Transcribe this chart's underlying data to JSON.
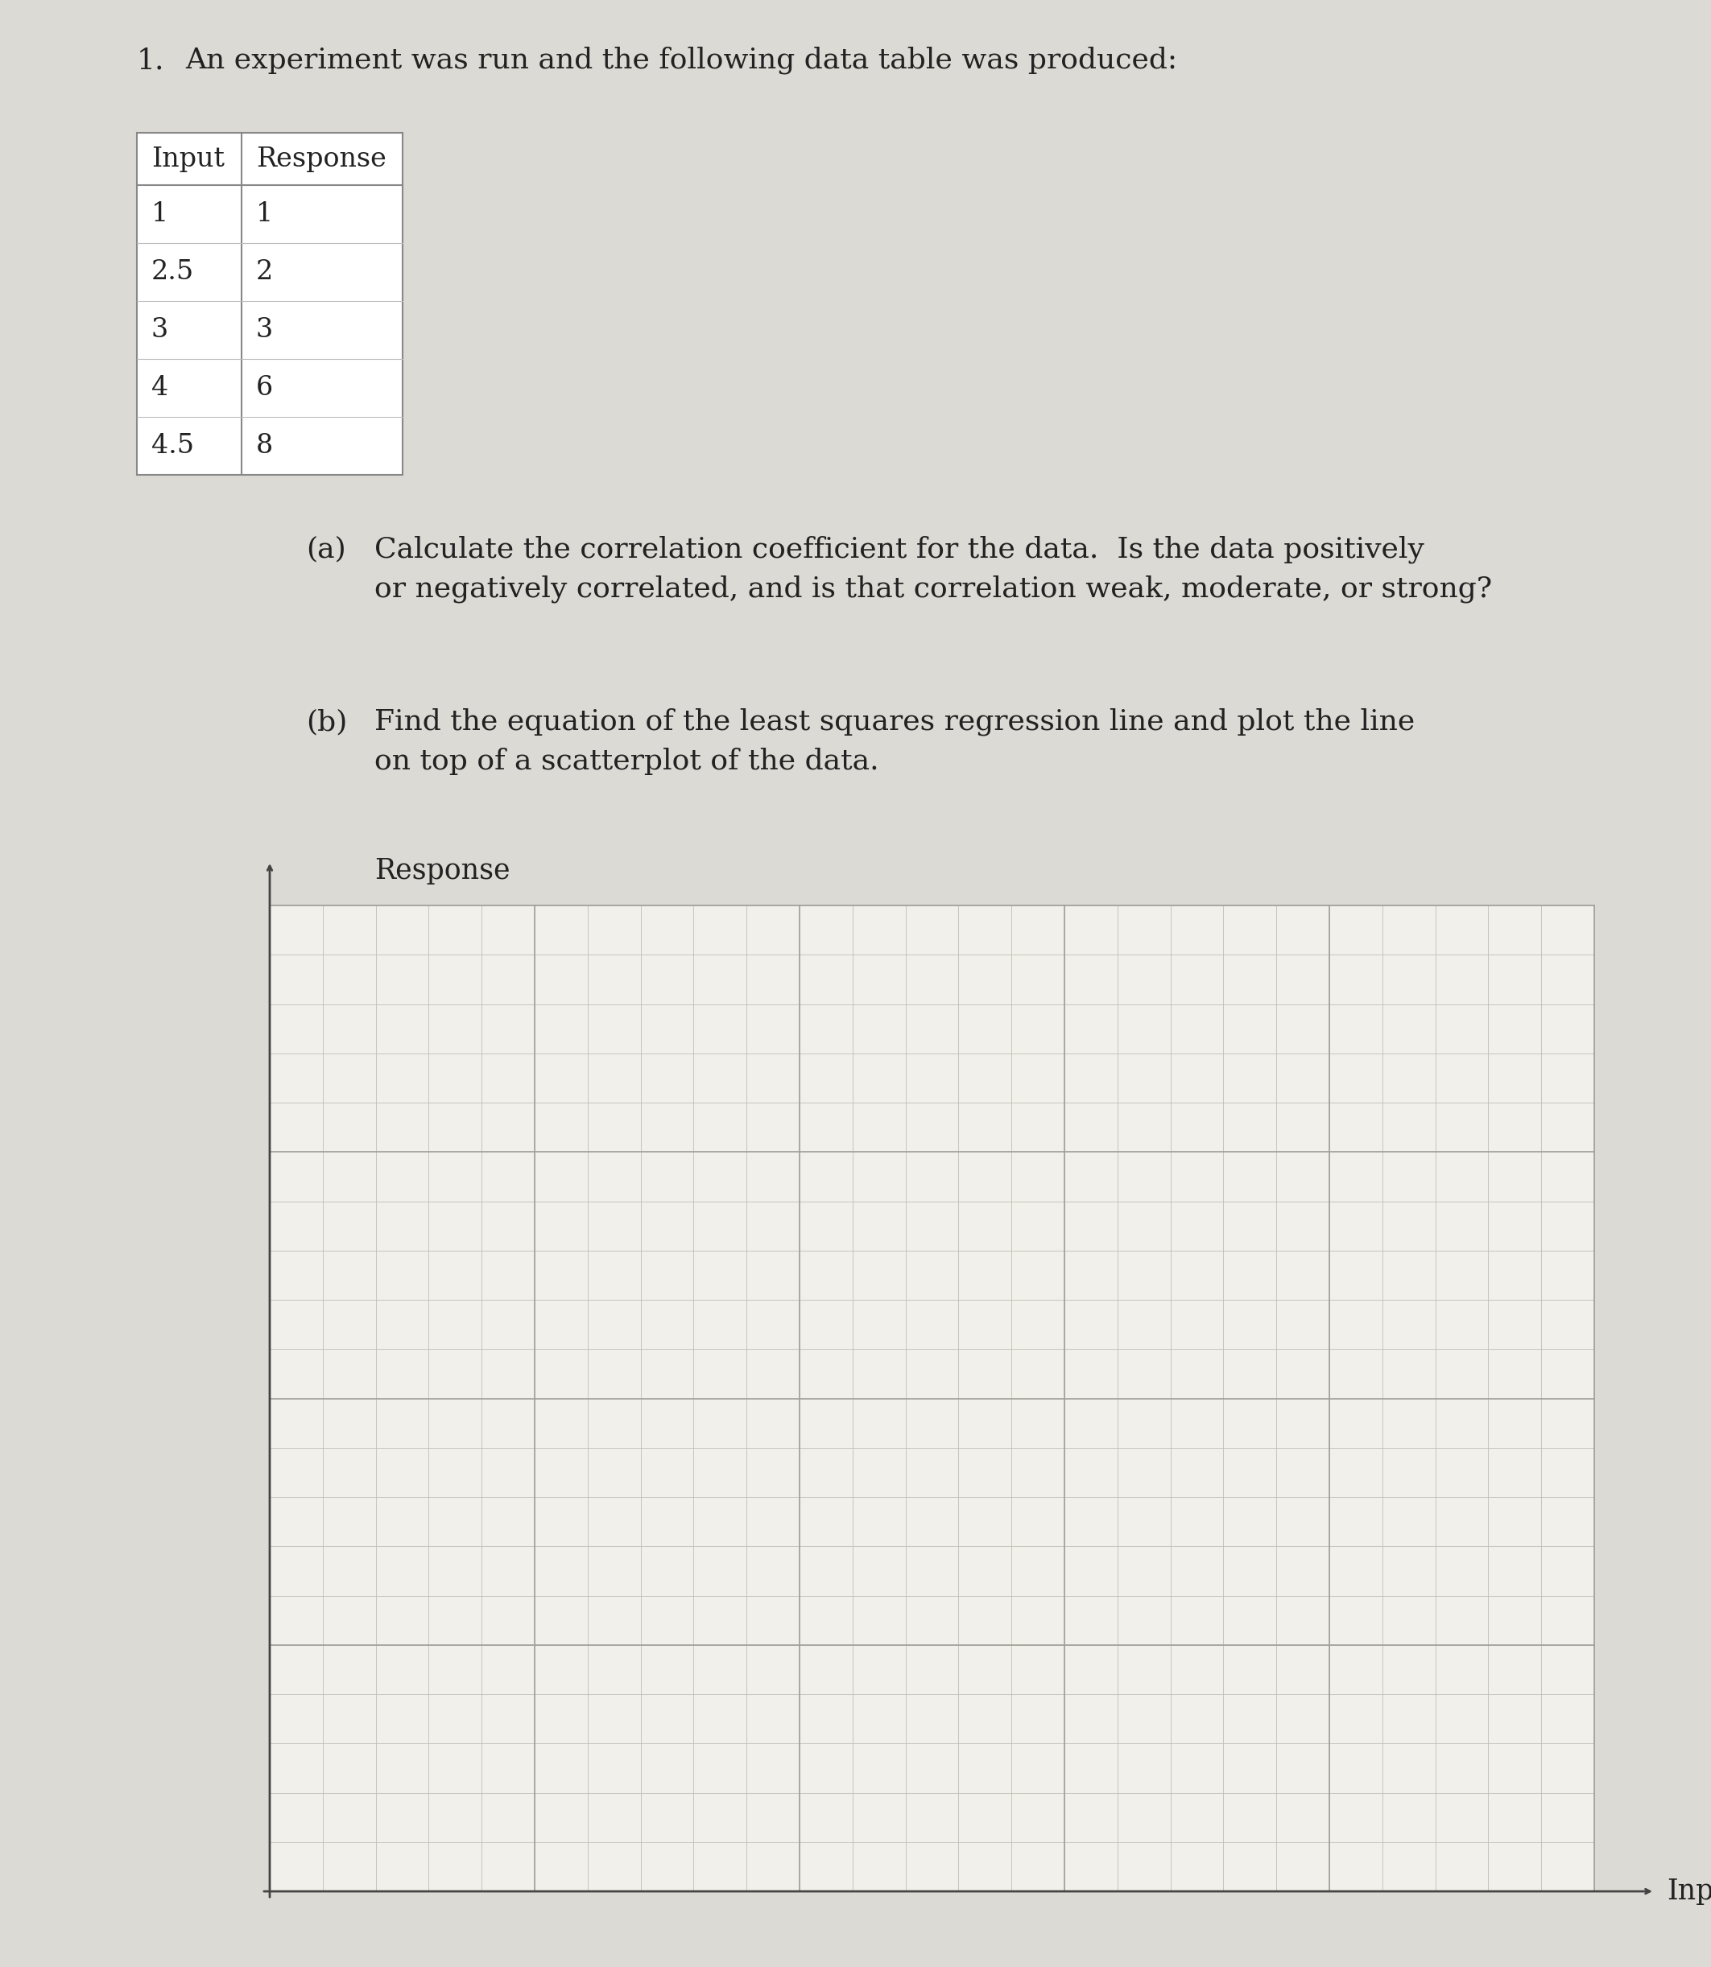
{
  "problem_number": "1.",
  "problem_text": "An experiment was run and the following data table was produced:",
  "table_headers": [
    "Input",
    "Response"
  ],
  "table_data": [
    [
      1,
      1
    ],
    [
      2.5,
      2
    ],
    [
      3,
      3
    ],
    [
      4,
      6
    ],
    [
      4.5,
      8
    ]
  ],
  "part_a_label": "(a)",
  "part_a_text": "Calculate the correlation coefficient for the data.  Is the data positively\nor negatively correlated, and is that correlation weak, moderate, or strong?",
  "part_b_label": "(b)",
  "part_b_text": "Find the equation of the least squares regression line and plot the line\non top of a scatterplot of the data.",
  "graph_ylabel": "Response",
  "graph_xlabel": "Input",
  "bg_color": "#dcdad4",
  "grid_bg_color": "#f2f0ea",
  "grid_line_color": "#c0bdb5",
  "grid_major_color": "#a0a098",
  "axis_color": "#444444",
  "text_color": "#222222",
  "grid_cols": 25,
  "grid_rows": 20,
  "grid_major_every": 5
}
